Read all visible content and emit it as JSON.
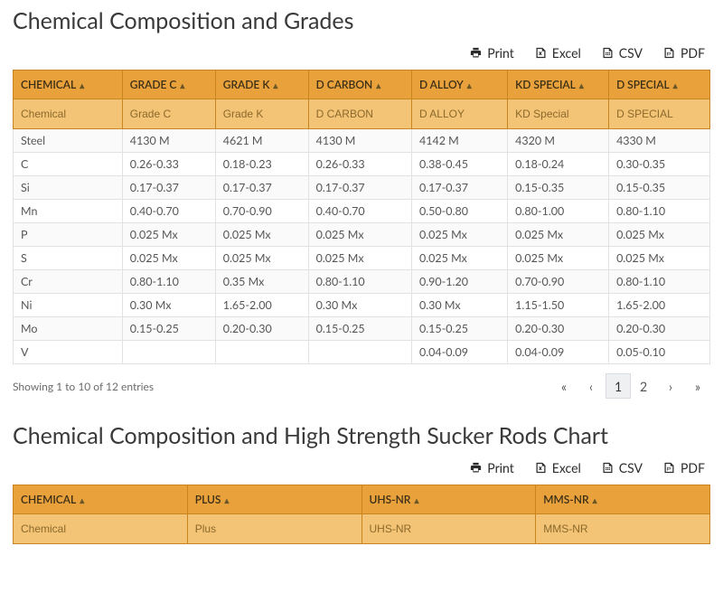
{
  "section1": {
    "title": "Chemical Composition and Grades",
    "export": {
      "print": "Print",
      "excel": "Excel",
      "csv": "CSV",
      "pdf": "PDF"
    },
    "columns": [
      {
        "label": "CHEMICAL",
        "placeholder": "Chemical"
      },
      {
        "label": "GRADE C",
        "placeholder": "Grade C"
      },
      {
        "label": "GRADE K",
        "placeholder": "Grade K"
      },
      {
        "label": "D CARBON",
        "placeholder": "D CARBON"
      },
      {
        "label": "D ALLOY",
        "placeholder": "D ALLOY"
      },
      {
        "label": "KD SPECIAL",
        "placeholder": "KD Special"
      },
      {
        "label": "D SPECIAL",
        "placeholder": "D SPECIAL"
      }
    ],
    "rows": [
      [
        "Steel",
        "4130 M",
        "4621 M",
        "4130 M",
        "4142 M",
        "4320 M",
        "4330 M"
      ],
      [
        "C",
        "0.26-0.33",
        "0.18-0.23",
        "0.26-0.33",
        "0.38-0.45",
        "0.18-0.24",
        "0.30-0.35"
      ],
      [
        "Si",
        "0.17-0.37",
        "0.17-0.37",
        "0.17-0.37",
        "0.17-0.37",
        "0.15-0.35",
        "0.15-0.35"
      ],
      [
        "Mn",
        "0.40-0.70",
        "0.70-0.90",
        "0.40-0.70",
        "0.50-0.80",
        "0.80-1.00",
        "0.80-1.10"
      ],
      [
        "P",
        "0.025 Mx",
        "0.025 Mx",
        "0.025 Mx",
        "0.025 Mx",
        "0.025 Mx",
        "0.025 Mx"
      ],
      [
        "S",
        "0.025 Mx",
        "0.025 Mx",
        "0.025 Mx",
        "0.025 Mx",
        "0.025 Mx",
        "0.025 Mx"
      ],
      [
        "Cr",
        "0.80-1.10",
        "0.35 Mx",
        "0.80-1.10",
        "0.90-1.20",
        "0.70-0.90",
        "0.80-1.10"
      ],
      [
        "Ni",
        "0.30 Mx",
        "1.65-2.00",
        "0.30 Mx",
        "0.30 Mx",
        "1.15-1.50",
        "1.65-2.00"
      ],
      [
        "Mo",
        "0.15-0.25",
        "0.20-0.30",
        "0.15-0.25",
        "0.15-0.25",
        "0.20-0.30",
        "0.20-0.30"
      ],
      [
        "V",
        "",
        "",
        "",
        "0.04-0.09",
        "0.04-0.09",
        "0.05-0.10"
      ]
    ],
    "footer_info": "Showing 1 to 10 of 12 entries",
    "pager": {
      "first": "«",
      "prev": "‹",
      "pages": [
        "1",
        "2"
      ],
      "active": "1",
      "next": "›",
      "last": "»"
    }
  },
  "section2": {
    "title": "Chemical Composition and High Strength Sucker Rods Chart",
    "export": {
      "print": "Print",
      "excel": "Excel",
      "csv": "CSV",
      "pdf": "PDF"
    },
    "columns": [
      {
        "label": "CHEMICAL",
        "placeholder": "Chemical"
      },
      {
        "label": "PLUS",
        "placeholder": "Plus"
      },
      {
        "label": "UHS-NR",
        "placeholder": "UHS-NR"
      },
      {
        "label": "MMS-NR",
        "placeholder": "MMS-NR"
      }
    ]
  },
  "style": {
    "header_bg": "#e9a13b",
    "filter_bg": "#f3c376",
    "header_border": "#c8851f",
    "row_border": "#e2e2e2",
    "row_alt_bg": "#fafafa",
    "text_color": "#555"
  }
}
